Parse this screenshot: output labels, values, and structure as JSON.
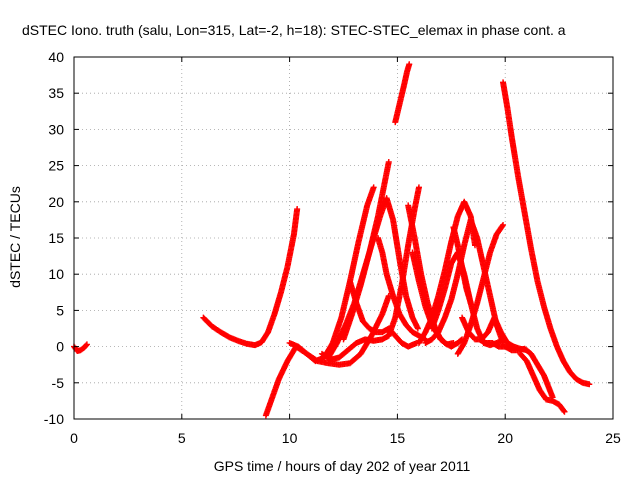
{
  "chart_data": {
    "type": "scatter",
    "title": "dSTEC Iono. truth (salu, Lon=315, Lat=-2, h=18): STEC-STEC_elemax in phase cont. a",
    "xlabel": "GPS time / hours of day 202 of year 2011",
    "ylabel": "dSTEC  / TECUs",
    "xlim": [
      0,
      25
    ],
    "ylim": [
      -10,
      40
    ],
    "x_ticks": [
      0,
      5,
      10,
      15,
      20,
      25
    ],
    "y_ticks": [
      -10,
      -5,
      0,
      5,
      10,
      15,
      20,
      25,
      30,
      35,
      40
    ],
    "grid": true,
    "marker": "plus",
    "color": "#ff0000",
    "series": [
      {
        "x": [
          0.0,
          0.15,
          0.3,
          0.45,
          0.6
        ],
        "y": [
          0.0,
          -0.6,
          -0.5,
          -0.2,
          0.3
        ]
      },
      {
        "x": [
          6.0,
          6.4,
          6.8,
          7.2,
          7.6,
          8.0,
          8.4,
          8.7,
          9.0,
          9.3,
          9.6,
          9.9,
          10.2,
          10.35
        ],
        "y": [
          4.0,
          2.8,
          2.0,
          1.3,
          0.8,
          0.4,
          0.2,
          0.6,
          2.0,
          4.5,
          7.5,
          11.0,
          15.5,
          19.0
        ]
      },
      {
        "x": [
          8.9,
          9.2,
          9.5,
          9.9,
          10.3,
          10.8,
          11.3,
          11.8,
          12.3,
          12.8,
          13.3,
          13.8,
          14.3,
          14.6
        ],
        "y": [
          -9.5,
          -7.0,
          -4.5,
          -2.0,
          0.0,
          -1.0,
          -2.0,
          -2.3,
          -2.5,
          -2.3,
          -1.0,
          1.5,
          4.5,
          7.0
        ]
      },
      {
        "x": [
          10.0,
          10.4,
          10.8,
          11.2,
          11.6,
          12.0,
          12.4,
          12.8,
          13.2,
          13.6,
          13.9
        ],
        "y": [
          0.5,
          0.0,
          -1.0,
          -2.0,
          -1.5,
          0.5,
          4.0,
          9.0,
          14.5,
          19.5,
          22.0
        ]
      },
      {
        "x": [
          11.5,
          11.9,
          12.3,
          12.7,
          13.1,
          13.5,
          13.9,
          14.3,
          14.6,
          14.9,
          15.2,
          15.5,
          15.8,
          16.0
        ],
        "y": [
          -1.0,
          -1.8,
          -1.5,
          -0.5,
          0.5,
          1.0,
          0.8,
          1.0,
          1.5,
          4.0,
          8.5,
          14.0,
          19.0,
          22.0
        ]
      },
      {
        "x": [
          11.8,
          12.2,
          12.6,
          13.0,
          13.4,
          13.8,
          14.2,
          14.5,
          14.8,
          15.1,
          15.4,
          15.7,
          15.95
        ],
        "y": [
          -1.5,
          0.5,
          3.0,
          6.0,
          10.0,
          14.0,
          18.0,
          20.5,
          17.5,
          12.0,
          7.0,
          4.0,
          2.5
        ]
      },
      {
        "x": [
          12.5,
          12.9,
          13.3,
          13.7,
          14.1,
          14.4,
          14.6
        ],
        "y": [
          1.0,
          4.5,
          8.5,
          13.0,
          18.0,
          22.5,
          25.5
        ]
      },
      {
        "x": [
          12.8,
          13.1,
          13.4,
          13.7,
          14.0,
          14.3,
          14.6,
          14.9,
          15.2,
          15.5,
          15.9
        ],
        "y": [
          9.0,
          6.0,
          3.5,
          2.5,
          2.0,
          2.0,
          2.5,
          1.5,
          0.5,
          0.0,
          0.5
        ]
      },
      {
        "x": [
          14.1,
          14.3,
          14.5,
          14.8,
          15.1,
          15.4,
          15.7,
          16.0,
          16.3
        ],
        "y": [
          15.0,
          13.0,
          10.0,
          7.0,
          4.5,
          3.0,
          2.0,
          1.5,
          1.0
        ]
      },
      {
        "x": [
          14.9,
          15.1,
          15.3,
          15.45,
          15.55
        ],
        "y": [
          31.0,
          33.5,
          36.0,
          38.0,
          39.0
        ]
      },
      {
        "x": [
          15.5,
          15.8,
          16.1,
          16.4,
          16.7,
          17.0,
          17.3,
          17.6
        ],
        "y": [
          19.5,
          15.0,
          10.0,
          6.0,
          3.0,
          1.0,
          0.3,
          0.5
        ]
      },
      {
        "x": [
          15.7,
          16.0,
          16.3,
          16.6,
          16.9,
          17.2,
          17.5,
          17.8,
          18.0
        ],
        "y": [
          13.0,
          9.0,
          5.5,
          3.0,
          1.5,
          0.5,
          0.0,
          0.5,
          1.0
        ]
      },
      {
        "x": [
          16.0,
          16.3,
          16.6,
          16.9,
          17.2,
          17.5,
          17.8,
          18.1,
          18.4,
          18.6
        ],
        "y": [
          0.5,
          2.0,
          4.0,
          7.0,
          10.5,
          14.5,
          18.0,
          20.0,
          18.0,
          14.0
        ]
      },
      {
        "x": [
          16.3,
          16.6,
          16.9,
          17.2,
          17.5,
          17.8,
          18.1,
          18.4,
          18.7,
          19.0,
          19.3,
          19.6,
          19.9
        ],
        "y": [
          0.5,
          1.0,
          2.0,
          4.0,
          6.5,
          10.0,
          14.0,
          17.5,
          15.0,
          11.0,
          7.0,
          3.0,
          0.5
        ]
      },
      {
        "x": [
          16.6,
          16.9,
          17.2,
          17.5,
          17.8,
          18.1,
          18.4,
          18.7,
          19.0,
          19.3,
          19.6,
          19.95
        ],
        "y": [
          2.5,
          5.0,
          8.0,
          11.5,
          13.0,
          10.0,
          6.0,
          2.5,
          0.5,
          0.2,
          0.5,
          1.0
        ]
      },
      {
        "x": [
          17.6,
          17.8,
          18.0,
          18.2,
          18.4
        ],
        "y": [
          16.5,
          14.0,
          11.0,
          8.0,
          6.0
        ]
      },
      {
        "x": [
          17.8,
          18.1,
          18.4,
          18.7,
          19.0,
          19.3,
          19.6,
          19.9
        ],
        "y": [
          -1.0,
          0.5,
          3.0,
          6.0,
          9.5,
          13.0,
          15.5,
          16.8
        ]
      },
      {
        "x": [
          18.0,
          18.3,
          18.6,
          18.9,
          19.2,
          19.5,
          19.8,
          20.1,
          20.4,
          20.7,
          21.0
        ],
        "y": [
          4.0,
          2.0,
          1.0,
          1.0,
          2.0,
          4.0,
          2.0,
          0.5,
          0.0,
          -0.3,
          -0.5
        ]
      },
      {
        "x": [
          18.8,
          19.1,
          19.4,
          19.7,
          20.0,
          20.3,
          20.6,
          20.9,
          21.2,
          21.5,
          21.8,
          22.0,
          22.2
        ],
        "y": [
          1.0,
          0.5,
          0.5,
          0.0,
          0.0,
          -0.5,
          -0.5,
          -0.3,
          -1.0,
          -2.5,
          -4.0,
          -5.5,
          -7.0
        ]
      },
      {
        "x": [
          19.9,
          20.1,
          20.3,
          20.6,
          20.9,
          21.2,
          21.5,
          21.8,
          22.1,
          22.4,
          22.7,
          23.0,
          23.3,
          23.6,
          23.9
        ],
        "y": [
          36.5,
          33.0,
          29.0,
          23.5,
          18.5,
          13.5,
          9.0,
          5.5,
          2.5,
          0.0,
          -2.0,
          -3.5,
          -4.5,
          -5.0,
          -5.2
        ]
      },
      {
        "x": [
          20.7,
          21.0,
          21.3,
          21.6,
          21.9,
          22.2,
          22.5,
          22.75
        ],
        "y": [
          -1.0,
          -2.0,
          -4.0,
          -6.0,
          -7.3,
          -7.5,
          -8.0,
          -9.0
        ]
      }
    ]
  }
}
